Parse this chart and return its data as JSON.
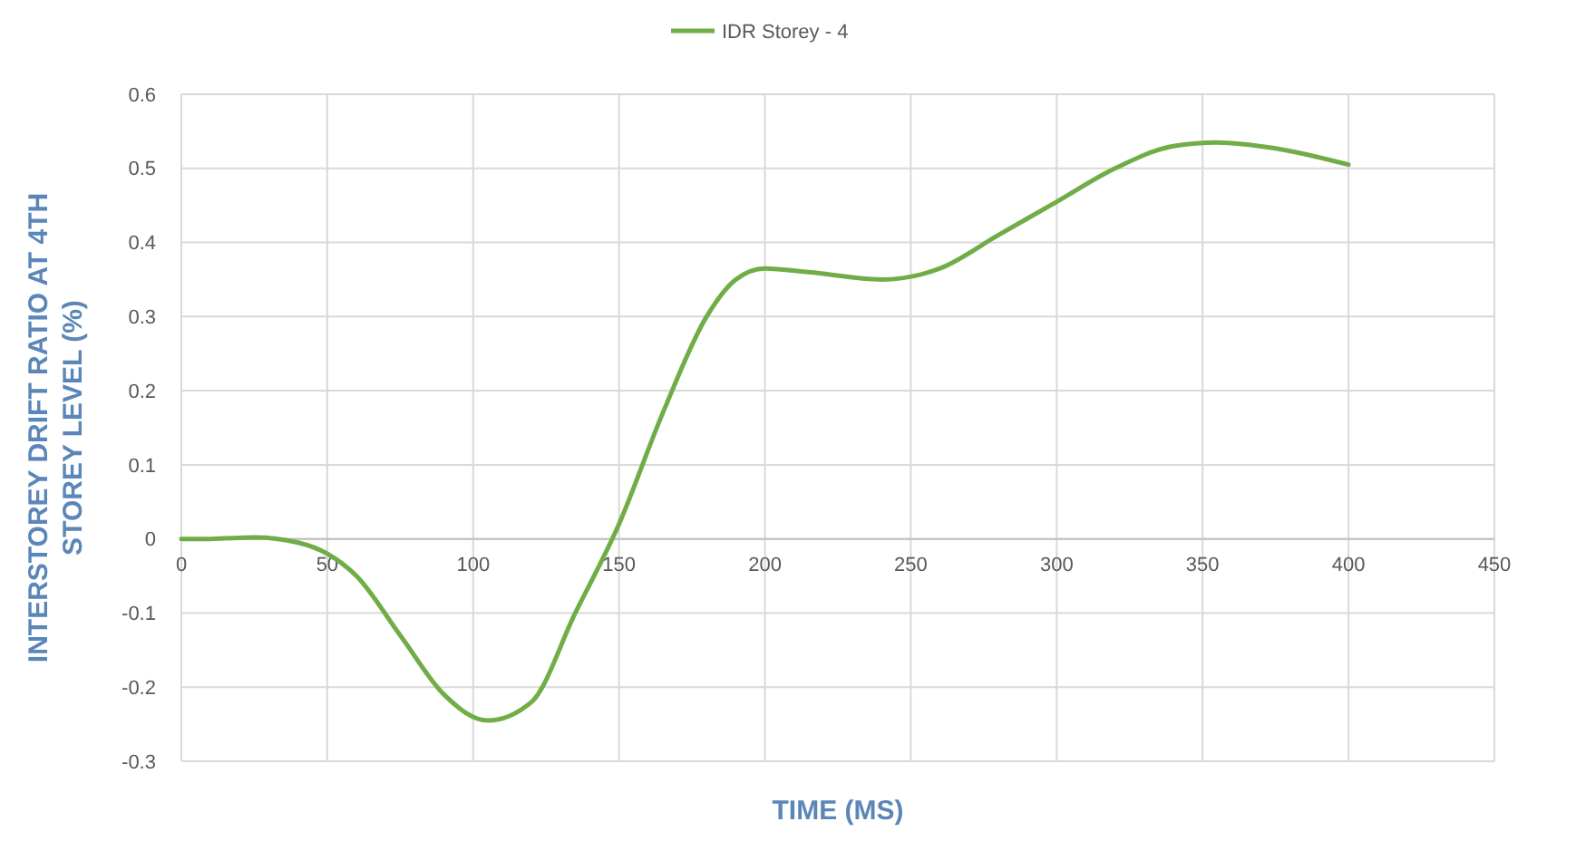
{
  "chart_data": {
    "type": "line",
    "xlabel": "TIME (MS)",
    "ylabel": "INTERSTOREY DRIFT RATIO AT 4TH STOREY LEVEL (%)",
    "xlim": [
      0,
      450
    ],
    "xticks": [
      0,
      50,
      100,
      150,
      200,
      250,
      300,
      350,
      400,
      450
    ],
    "ylim": [
      -0.3,
      0.6
    ],
    "yticks": [
      -0.3,
      -0.2,
      -0.1,
      0,
      0.1,
      0.2,
      0.3,
      0.4,
      0.5,
      0.6
    ],
    "grid": true,
    "legend": "top",
    "marker": "none",
    "line_style": "solid",
    "series": [
      {
        "name": "IDR Storey - 4",
        "color": "#70ad47",
        "x": [
          0,
          10,
          25,
          40,
          50,
          60,
          75,
          90,
          105,
          120,
          135,
          150,
          165,
          180,
          190,
          200,
          215,
          240,
          260,
          280,
          300,
          320,
          340,
          355,
          375,
          400
        ],
        "values": [
          0,
          0,
          0.002,
          -0.005,
          -0.02,
          -0.05,
          -0.13,
          -0.21,
          -0.245,
          -0.22,
          -0.1,
          0.02,
          0.17,
          0.3,
          0.35,
          0.365,
          0.36,
          0.35,
          0.365,
          0.41,
          0.455,
          0.5,
          0.53,
          0.535,
          0.527,
          0.505
        ]
      }
    ]
  }
}
